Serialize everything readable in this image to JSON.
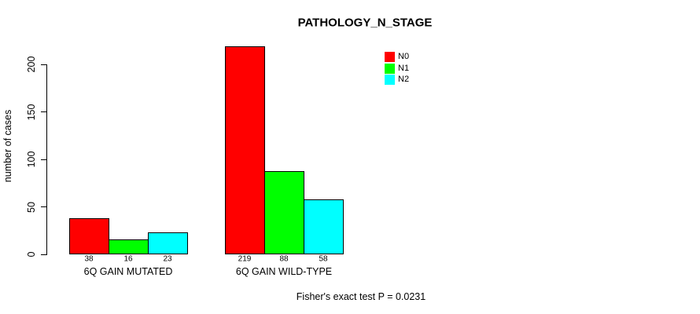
{
  "chart_data": {
    "type": "bar",
    "title": "PATHOLOGY_N_STAGE",
    "ylabel": "number of cases",
    "xlabel": "",
    "categories": [
      "6Q GAIN MUTATED",
      "6Q GAIN WILD-TYPE"
    ],
    "series": [
      {
        "name": "N0",
        "color": "#FF0000",
        "values": [
          38,
          219
        ]
      },
      {
        "name": "N1",
        "color": "#00FF00",
        "values": [
          16,
          88
        ]
      },
      {
        "name": "N2",
        "color": "#00FFFF",
        "values": [
          23,
          58
        ]
      }
    ],
    "yticks": [
      0,
      50,
      100,
      150,
      200
    ],
    "ylim": [
      0,
      220
    ],
    "grid": false,
    "legend_position": "top-right",
    "bar_border_color": "#000000",
    "axis_color": "#000000",
    "background_color": "#FFFFFF",
    "footnote": "Fisher's exact test P = 0.0231"
  }
}
